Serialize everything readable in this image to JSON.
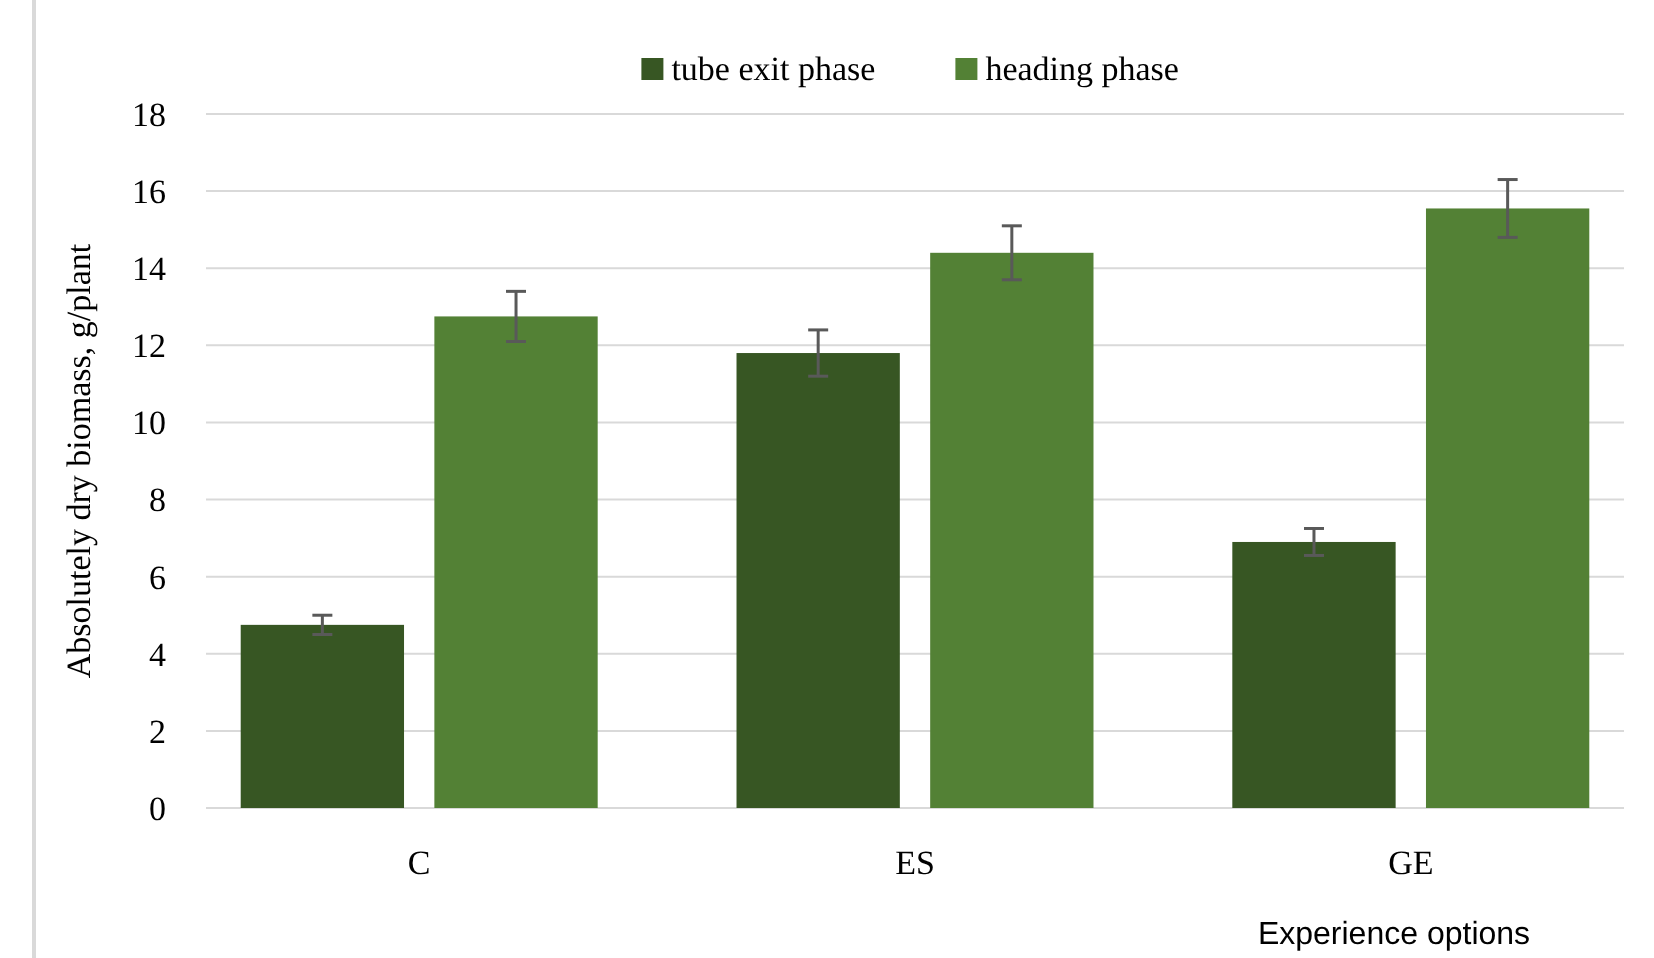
{
  "chart_data": {
    "type": "bar",
    "ylabel": "Absolutely dry biomass, g/plant",
    "xlabel": "Experience options",
    "categories": [
      "C",
      "ES",
      "GE"
    ],
    "series": [
      {
        "name": "tube exit phase",
        "color": "#375623",
        "values": [
          4.75,
          11.8,
          6.9
        ],
        "errors": [
          0.25,
          0.6,
          0.35
        ]
      },
      {
        "name": "heading phase",
        "color": "#538135",
        "values": [
          12.75,
          14.4,
          15.55
        ],
        "errors": [
          0.65,
          0.7,
          0.75
        ]
      }
    ],
    "ylim": [
      0,
      18
    ],
    "yticks": [
      0,
      2,
      4,
      6,
      8,
      10,
      12,
      14,
      16,
      18
    ],
    "grid": "y",
    "legend": "top"
  }
}
